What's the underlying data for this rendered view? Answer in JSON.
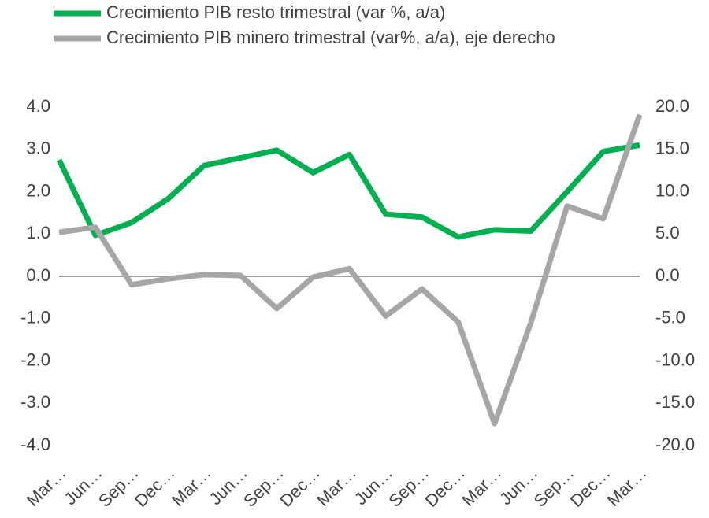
{
  "chart_data": {
    "type": "line",
    "categories": [
      "Mar…",
      "Jun…",
      "Sep…",
      "Dec…",
      "Mar…",
      "Jun…",
      "Sep…",
      "Dec…",
      "Mar…",
      "Jun…",
      "Sep…",
      "Dec…",
      "Mar…",
      "Jun…",
      "Sep…",
      "Dec…",
      "Mar…"
    ],
    "series": [
      {
        "name": "Crecimiento PIB resto trimestral (var %, a/a)",
        "color": "#00b050",
        "axis": "y",
        "values": [
          2.75,
          0.97,
          1.27,
          1.83,
          2.62,
          2.8,
          2.98,
          2.45,
          2.88,
          1.47,
          1.4,
          0.93,
          1.1,
          1.07,
          2.0,
          2.95,
          3.1
        ]
      },
      {
        "name": "Crecimiento PIB minero trimestral (var%, a/a), eje derecho",
        "color": "#a6a6a6",
        "axis": "y2",
        "values": [
          5.2,
          5.8,
          -1.0,
          -0.3,
          0.2,
          0.1,
          -3.8,
          -0.1,
          0.9,
          -4.7,
          -1.5,
          -5.4,
          -17.4,
          -5.5,
          8.3,
          6.8,
          19.1
        ]
      }
    ],
    "ylim": [
      -4,
      4
    ],
    "yticks": [
      {
        "value": 4,
        "label": "4.0"
      },
      {
        "value": 3,
        "label": "3.0"
      },
      {
        "value": 2,
        "label": "2.0"
      },
      {
        "value": 1,
        "label": "1.0"
      },
      {
        "value": 0,
        "label": "0.0"
      },
      {
        "value": -1,
        "label": "-1.0"
      },
      {
        "value": -2,
        "label": "-2.0"
      },
      {
        "value": -3,
        "label": "-3.0"
      },
      {
        "value": -4,
        "label": "-4.0"
      }
    ],
    "y2lim": [
      -20,
      20
    ],
    "y2ticks": [
      {
        "value": 20,
        "label": "20.0"
      },
      {
        "value": 15,
        "label": "15.0"
      },
      {
        "value": 10,
        "label": "10.0"
      },
      {
        "value": 5,
        "label": "5.0"
      },
      {
        "value": 0,
        "label": "0.0"
      },
      {
        "value": -5,
        "label": "-5.0"
      },
      {
        "value": -10,
        "label": "-10.0"
      },
      {
        "value": -15,
        "label": "-15.0"
      },
      {
        "value": -20,
        "label": "-20.0"
      }
    ],
    "legend": "top"
  }
}
